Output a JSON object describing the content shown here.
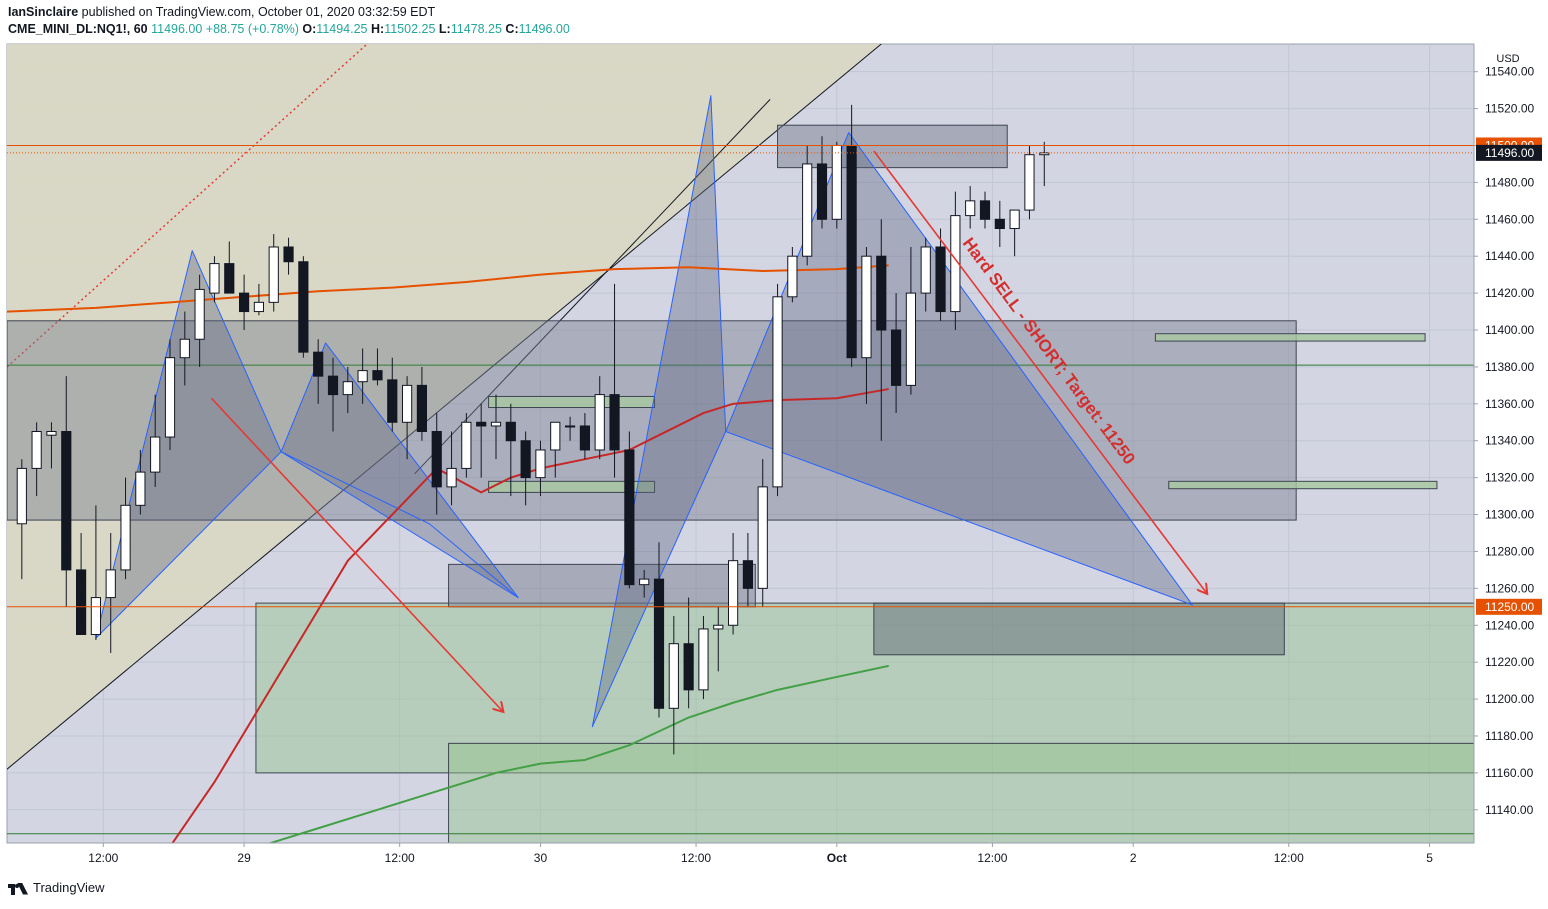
{
  "header": {
    "author": "IanSinclaire",
    "published": "published on TradingView.com, October 01, 2020 03:32:59 EDT",
    "symbol": "CME_MINI_DL:NQ1!, 60",
    "last": "11496.00",
    "change": "+88.75 (+0.78%)",
    "open_label": "O:",
    "open": "11494.25",
    "high_label": "H:",
    "high": "11502.25",
    "low_label": "L:",
    "low": "11478.25",
    "close_label": "C:",
    "close": "11496.00"
  },
  "footer": {
    "brand": "TradingView"
  },
  "colors": {
    "up_candle": "#ffffff",
    "down_candle": "#131722",
    "ma_orange": "#e65100",
    "ma_red": "#c62828",
    "ma_green": "#43a047",
    "annotation": "#d32f2f"
  },
  "chart_data": {
    "type": "candlestick",
    "currency": "USD",
    "ylim": [
      11122,
      11555
    ],
    "yticks": [
      11140,
      11160,
      11180,
      11200,
      11220,
      11240,
      11260,
      11280,
      11300,
      11320,
      11340,
      11360,
      11380,
      11400,
      11420,
      11440,
      11460,
      11480,
      11500,
      11520,
      11540
    ],
    "xlim": [
      -1,
      98
    ],
    "xticks": [
      {
        "x": 5.5,
        "label": "12:00"
      },
      {
        "x": 15,
        "label": "29"
      },
      {
        "x": 25.5,
        "label": "12:00"
      },
      {
        "x": 35,
        "label": "30"
      },
      {
        "x": 45.5,
        "label": "12:00"
      },
      {
        "x": 55,
        "label": "Oct"
      },
      {
        "x": 65.5,
        "label": "12:00"
      },
      {
        "x": 75,
        "label": "2"
      },
      {
        "x": 85.5,
        "label": "12:00"
      },
      {
        "x": 95,
        "label": "5"
      }
    ],
    "price_labels": [
      {
        "value": 11500,
        "text": "11500.00",
        "style": "orange"
      },
      {
        "value": 11496,
        "text": "11496.00",
        "style": "black"
      },
      {
        "value": 11250,
        "text": "11250.00",
        "style": "orange"
      }
    ],
    "candles": [
      {
        "o": 11295,
        "h": 11330,
        "l": 11265,
        "c": 11325
      },
      {
        "o": 11325,
        "h": 11350,
        "l": 11310,
        "c": 11345
      },
      {
        "o": 11343,
        "h": 11350,
        "l": 11325,
        "c": 11345
      },
      {
        "o": 11345,
        "h": 11375,
        "l": 11250,
        "c": 11270
      },
      {
        "o": 11270,
        "h": 11290,
        "l": 11235,
        "c": 11235
      },
      {
        "o": 11235,
        "h": 11305,
        "l": 11232,
        "c": 11255
      },
      {
        "o": 11255,
        "h": 11290,
        "l": 11225,
        "c": 11270
      },
      {
        "o": 11270,
        "h": 11320,
        "l": 11265,
        "c": 11305
      },
      {
        "o": 11305,
        "h": 11335,
        "l": 11300,
        "c": 11323
      },
      {
        "o": 11323,
        "h": 11365,
        "l": 11315,
        "c": 11342
      },
      {
        "o": 11342,
        "h": 11395,
        "l": 11335,
        "c": 11385
      },
      {
        "o": 11385,
        "h": 11410,
        "l": 11370,
        "c": 11395
      },
      {
        "o": 11395,
        "h": 11430,
        "l": 11380,
        "c": 11422
      },
      {
        "o": 11420,
        "h": 11440,
        "l": 11415,
        "c": 11436
      },
      {
        "o": 11436,
        "h": 11448,
        "l": 11420,
        "c": 11420
      },
      {
        "o": 11420,
        "h": 11430,
        "l": 11400,
        "c": 11410
      },
      {
        "o": 11410,
        "h": 11425,
        "l": 11408,
        "c": 11415
      },
      {
        "o": 11415,
        "h": 11452,
        "l": 11410,
        "c": 11445
      },
      {
        "o": 11445,
        "h": 11450,
        "l": 11430,
        "c": 11437
      },
      {
        "o": 11437,
        "h": 11440,
        "l": 11385,
        "c": 11388
      },
      {
        "o": 11388,
        "h": 11395,
        "l": 11360,
        "c": 11375
      },
      {
        "o": 11375,
        "h": 11385,
        "l": 11345,
        "c": 11365
      },
      {
        "o": 11365,
        "h": 11380,
        "l": 11355,
        "c": 11372
      },
      {
        "o": 11372,
        "h": 11390,
        "l": 11360,
        "c": 11378
      },
      {
        "o": 11378,
        "h": 11390,
        "l": 11370,
        "c": 11373
      },
      {
        "o": 11373,
        "h": 11385,
        "l": 11345,
        "c": 11350
      },
      {
        "o": 11350,
        "h": 11375,
        "l": 11330,
        "c": 11370
      },
      {
        "o": 11370,
        "h": 11380,
        "l": 11340,
        "c": 11345
      },
      {
        "o": 11345,
        "h": 11355,
        "l": 11300,
        "c": 11315
      },
      {
        "o": 11315,
        "h": 11345,
        "l": 11305,
        "c": 11325
      },
      {
        "o": 11325,
        "h": 11355,
        "l": 11320,
        "c": 11350
      },
      {
        "o": 11350,
        "h": 11360,
        "l": 11320,
        "c": 11348
      },
      {
        "o": 11348,
        "h": 11365,
        "l": 11330,
        "c": 11350
      },
      {
        "o": 11350,
        "h": 11360,
        "l": 11310,
        "c": 11340
      },
      {
        "o": 11340,
        "h": 11345,
        "l": 11305,
        "c": 11320
      },
      {
        "o": 11320,
        "h": 11340,
        "l": 11310,
        "c": 11335
      },
      {
        "o": 11335,
        "h": 11350,
        "l": 11320,
        "c": 11350
      },
      {
        "o": 11348,
        "h": 11353,
        "l": 11340,
        "c": 11348
      },
      {
        "o": 11348,
        "h": 11355,
        "l": 11330,
        "c": 11335
      },
      {
        "o": 11335,
        "h": 11375,
        "l": 11330,
        "c": 11365
      },
      {
        "o": 11365,
        "h": 11425,
        "l": 11320,
        "c": 11335
      },
      {
        "o": 11335,
        "h": 11345,
        "l": 11260,
        "c": 11262
      },
      {
        "o": 11262,
        "h": 11270,
        "l": 11255,
        "c": 11265
      },
      {
        "o": 11265,
        "h": 11285,
        "l": 11190,
        "c": 11195
      },
      {
        "o": 11195,
        "h": 11245,
        "l": 11170,
        "c": 11230
      },
      {
        "o": 11230,
        "h": 11255,
        "l": 11195,
        "c": 11205
      },
      {
        "o": 11205,
        "h": 11245,
        "l": 11200,
        "c": 11238
      },
      {
        "o": 11238,
        "h": 11250,
        "l": 11215,
        "c": 11240
      },
      {
        "o": 11240,
        "h": 11290,
        "l": 11235,
        "c": 11275
      },
      {
        "o": 11275,
        "h": 11290,
        "l": 11250,
        "c": 11260
      },
      {
        "o": 11260,
        "h": 11330,
        "l": 11250,
        "c": 11315
      },
      {
        "o": 11315,
        "h": 11425,
        "l": 11310,
        "c": 11418
      },
      {
        "o": 11418,
        "h": 11445,
        "l": 11415,
        "c": 11440
      },
      {
        "o": 11440,
        "h": 11500,
        "l": 11435,
        "c": 11490
      },
      {
        "o": 11490,
        "h": 11505,
        "l": 11455,
        "c": 11460
      },
      {
        "o": 11460,
        "h": 11502,
        "l": 11455,
        "c": 11500
      },
      {
        "o": 11500,
        "h": 11522,
        "l": 11380,
        "c": 11385
      },
      {
        "o": 11385,
        "h": 11445,
        "l": 11360,
        "c": 11440
      },
      {
        "o": 11440,
        "h": 11460,
        "l": 11340,
        "c": 11400
      },
      {
        "o": 11400,
        "h": 11420,
        "l": 11355,
        "c": 11370
      },
      {
        "o": 11370,
        "h": 11445,
        "l": 11365,
        "c": 11420
      },
      {
        "o": 11420,
        "h": 11450,
        "l": 11410,
        "c": 11445
      },
      {
        "o": 11445,
        "h": 11455,
        "l": 11405,
        "c": 11410
      },
      {
        "o": 11410,
        "h": 11475,
        "l": 11400,
        "c": 11462
      },
      {
        "o": 11462,
        "h": 11478,
        "l": 11455,
        "c": 11470
      },
      {
        "o": 11470,
        "h": 11475,
        "l": 11455,
        "c": 11460
      },
      {
        "o": 11460,
        "h": 11470,
        "l": 11445,
        "c": 11455
      },
      {
        "o": 11455,
        "h": 11465,
        "l": 11440,
        "c": 11465
      },
      {
        "o": 11465,
        "h": 11500,
        "l": 11460,
        "c": 11495
      },
      {
        "o": 11495,
        "h": 11502,
        "l": 11478,
        "c": 11496
      }
    ],
    "moving_averages": [
      {
        "color": "#e65100",
        "points": [
          [
            -1,
            11410
          ],
          [
            5,
            11412
          ],
          [
            10,
            11415
          ],
          [
            15,
            11418
          ],
          [
            20,
            11421
          ],
          [
            25,
            11423
          ],
          [
            30,
            11426
          ],
          [
            35,
            11430
          ],
          [
            40,
            11433
          ],
          [
            45,
            11434
          ],
          [
            50,
            11432
          ],
          [
            55,
            11433
          ],
          [
            58.5,
            11435
          ]
        ]
      },
      {
        "color": "#c62828",
        "points": [
          [
            10,
            11120
          ],
          [
            13,
            11155
          ],
          [
            16,
            11195
          ],
          [
            19,
            11235
          ],
          [
            22,
            11275
          ],
          [
            25,
            11300
          ],
          [
            28,
            11325
          ],
          [
            31,
            11312
          ],
          [
            33,
            11320
          ],
          [
            35,
            11325
          ],
          [
            38,
            11330
          ],
          [
            41,
            11335
          ],
          [
            43,
            11343
          ],
          [
            46,
            11355
          ],
          [
            48,
            11360
          ],
          [
            51,
            11362
          ],
          [
            55,
            11363
          ],
          [
            58.5,
            11368
          ]
        ]
      },
      {
        "color": "#43a047",
        "points": [
          [
            16,
            11120
          ],
          [
            20,
            11130
          ],
          [
            24,
            11140
          ],
          [
            28,
            11150
          ],
          [
            32,
            11160
          ],
          [
            35,
            11165
          ],
          [
            38,
            11167
          ],
          [
            41,
            11175
          ],
          [
            45,
            11190
          ],
          [
            48,
            11198
          ],
          [
            51,
            11205
          ],
          [
            55,
            11212
          ],
          [
            58.5,
            11218
          ]
        ]
      }
    ],
    "annotation": "Hard SELL - SHORT; Target: 11250"
  }
}
